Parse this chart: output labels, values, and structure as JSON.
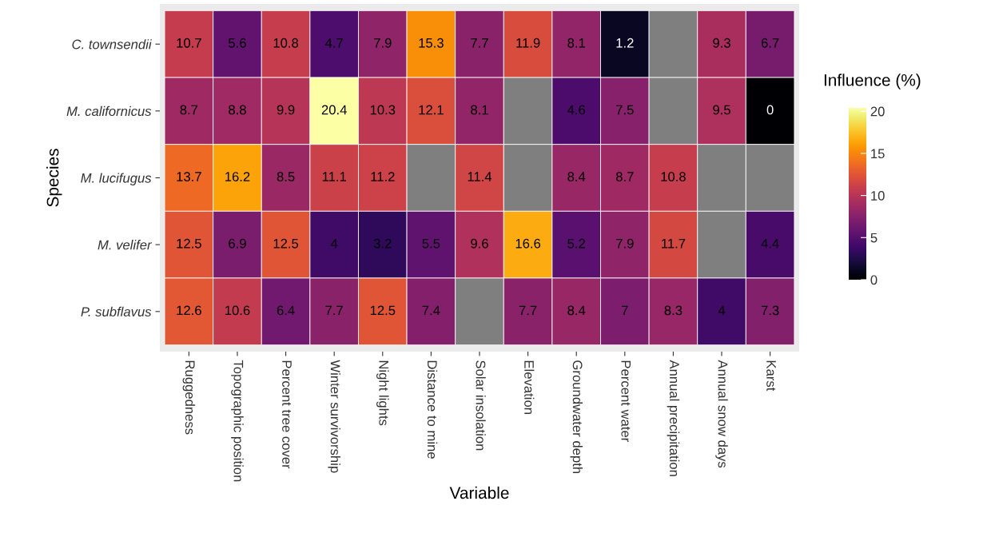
{
  "chart_data": {
    "type": "heatmap",
    "xlabel": "Variable",
    "ylabel": "Species",
    "clabel": "Influence (%)",
    "categories": [
      "Ruggedness",
      "Topographic position",
      "Percent tree cover",
      "Winter survivorship",
      "Night lights",
      "Distance to mine",
      "Solar insolation",
      "Elevation",
      "Groundwater depth",
      "Percent water",
      "Annual precipitation",
      "Annual snow days",
      "Karst"
    ],
    "y_categories": [
      "C. townsendii",
      "M. californicus",
      "M. lucifugus",
      "M. velifer",
      "P. subflavus"
    ],
    "cells": [
      [
        10.7,
        5.6,
        10.8,
        4.7,
        7.9,
        15.3,
        7.7,
        11.9,
        8.1,
        1.2,
        null,
        9.3,
        6.7
      ],
      [
        8.7,
        8.8,
        9.9,
        20.4,
        10.3,
        12.1,
        8.1,
        null,
        4.6,
        7.5,
        null,
        9.5,
        0
      ],
      [
        13.7,
        16.2,
        8.5,
        11.1,
        11.2,
        null,
        11.4,
        null,
        8.4,
        8.7,
        10.8,
        null,
        null
      ],
      [
        12.5,
        6.9,
        12.5,
        4,
        3.2,
        5.5,
        9.6,
        16.6,
        5.2,
        7.9,
        11.7,
        null,
        4.4
      ],
      [
        12.6,
        10.6,
        6.4,
        7.7,
        12.5,
        7.4,
        null,
        7.7,
        8.4,
        7,
        8.3,
        4,
        7.3
      ]
    ],
    "clim": [
      0,
      20.4
    ],
    "cticks": [
      0,
      5,
      10,
      15,
      20
    ],
    "data_labels": true
  }
}
